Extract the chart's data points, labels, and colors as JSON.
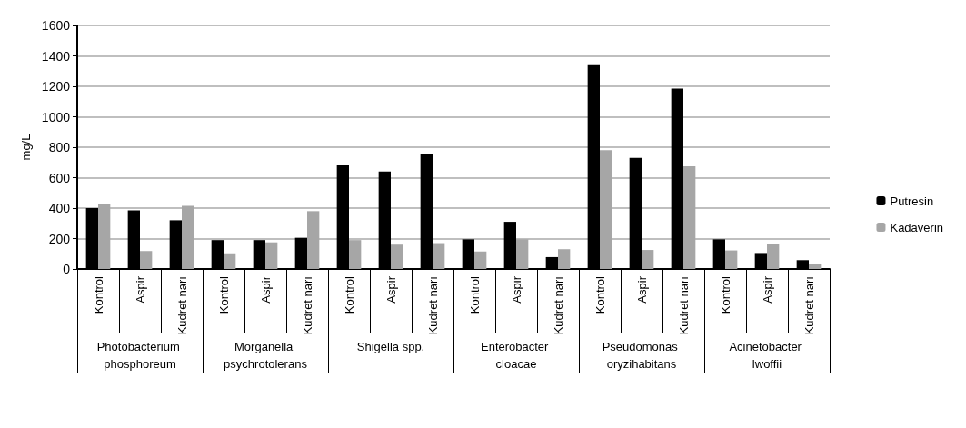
{
  "chart_data": {
    "type": "bar",
    "ylabel": "mg/L",
    "categories": [
      "Kontrol",
      "Aspir",
      "Kudret narı",
      "Kontrol",
      "Aspir",
      "Kudret narı",
      "Kontrol",
      "Aspir",
      "Kudret narı",
      "Kontrol",
      "Aspir",
      "Kudret narı",
      "Kontrol",
      "Aspir",
      "Kudret narı",
      "Kontrol",
      "Aspir",
      "Kudret narı"
    ],
    "annotations": [
      "Photobacterium phosphoreum",
      "Morganella psychrotolerans",
      "Shigella spp.",
      "Enterobacter cloacae",
      "Pseudomonas oryzihabitans",
      "Acinetobacter lwoffii"
    ],
    "series": [
      {
        "name": "Putresin",
        "color": "#000000",
        "values": [
          400,
          385,
          320,
          190,
          190,
          205,
          680,
          640,
          755,
          195,
          310,
          78,
          1345,
          730,
          1185,
          195,
          105,
          58
        ]
      },
      {
        "name": "Kadaverin",
        "color": "#a6a6a6",
        "values": [
          425,
          118,
          415,
          103,
          175,
          380,
          190,
          160,
          170,
          115,
          195,
          130,
          780,
          125,
          675,
          122,
          165,
          30
        ]
      }
    ],
    "ylim": [
      0,
      1600
    ],
    "yticks": [
      0,
      200,
      400,
      600,
      800,
      1000,
      1200,
      1400,
      1600
    ],
    "grid": "y",
    "legend": "right"
  }
}
